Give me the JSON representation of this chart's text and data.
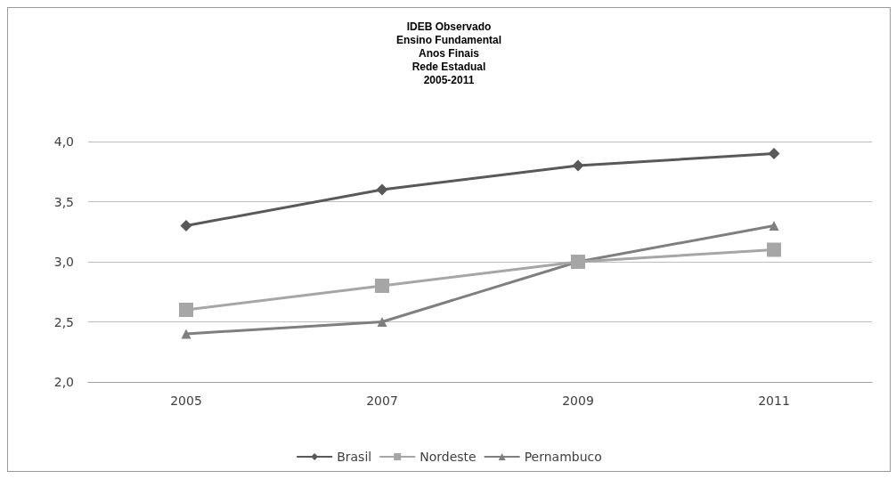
{
  "chart_data": {
    "type": "line",
    "title": "IDEB Observado\nEnsino Fundamental\nAnos Finais\nRede Estadual\n2005-2011",
    "categories": [
      "2005",
      "2007",
      "2009",
      "2011"
    ],
    "series": [
      {
        "name": "Brasil",
        "color": "#595959",
        "marker": "diamond",
        "values": [
          3.3,
          3.6,
          3.8,
          3.9
        ]
      },
      {
        "name": "Nordeste",
        "color": "#a6a6a6",
        "marker": "square",
        "values": [
          2.6,
          2.8,
          3.0,
          3.1
        ]
      },
      {
        "name": "Pernambuco",
        "color": "#7f7f7f",
        "marker": "triangle",
        "values": [
          2.4,
          2.5,
          3.0,
          3.3
        ]
      }
    ],
    "ylim": [
      2,
      4
    ],
    "yticks": [
      {
        "value": 2,
        "label": "2,0"
      },
      {
        "value": 2.5,
        "label": "2,5"
      },
      {
        "value": 3,
        "label": "3,0"
      },
      {
        "value": 3.5,
        "label": "3,5"
      },
      {
        "value": 4,
        "label": "4,0"
      }
    ],
    "grid": "y",
    "legend": "bottom",
    "line_style": "solid"
  }
}
